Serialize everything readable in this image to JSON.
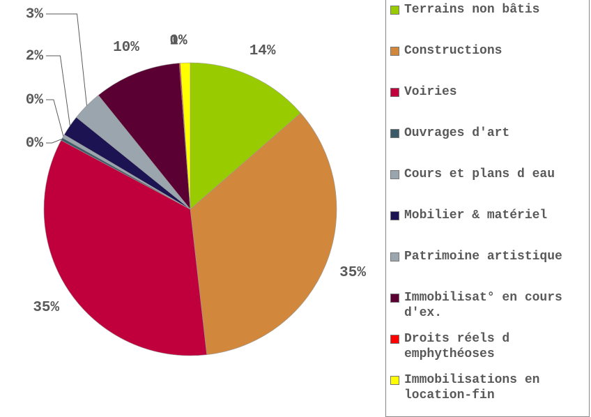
{
  "chart_data": {
    "type": "pie",
    "categories": [
      "Terrains non bâtis",
      "Constructions",
      "Voiries",
      "Ouvrages d'art",
      "Cours et plans d eau",
      "Mobilier & matériel",
      "Patrimoine artistique",
      "Immobilisat° en cours d'ex.",
      "Droits réels d emphythéoses",
      "Immobilisations en location-fin"
    ],
    "values": [
      13.6,
      34.6,
      34.6,
      0.3,
      0.4,
      2.3,
      3.4,
      9.6,
      0.1,
      1.1
    ],
    "value_labels": [
      "14%",
      "35%",
      "35%",
      "0%",
      "0%",
      "2%",
      "3%",
      "10%",
      "0%",
      "1%"
    ],
    "colors": [
      "#99cc00",
      "#d2883c",
      "#c0003c",
      "#3b5a68",
      "#9aa5ae",
      "#1c1452",
      "#9aa5ae",
      "#5a0032",
      "#ff0000",
      "#ffff00"
    ],
    "legend": "right"
  }
}
